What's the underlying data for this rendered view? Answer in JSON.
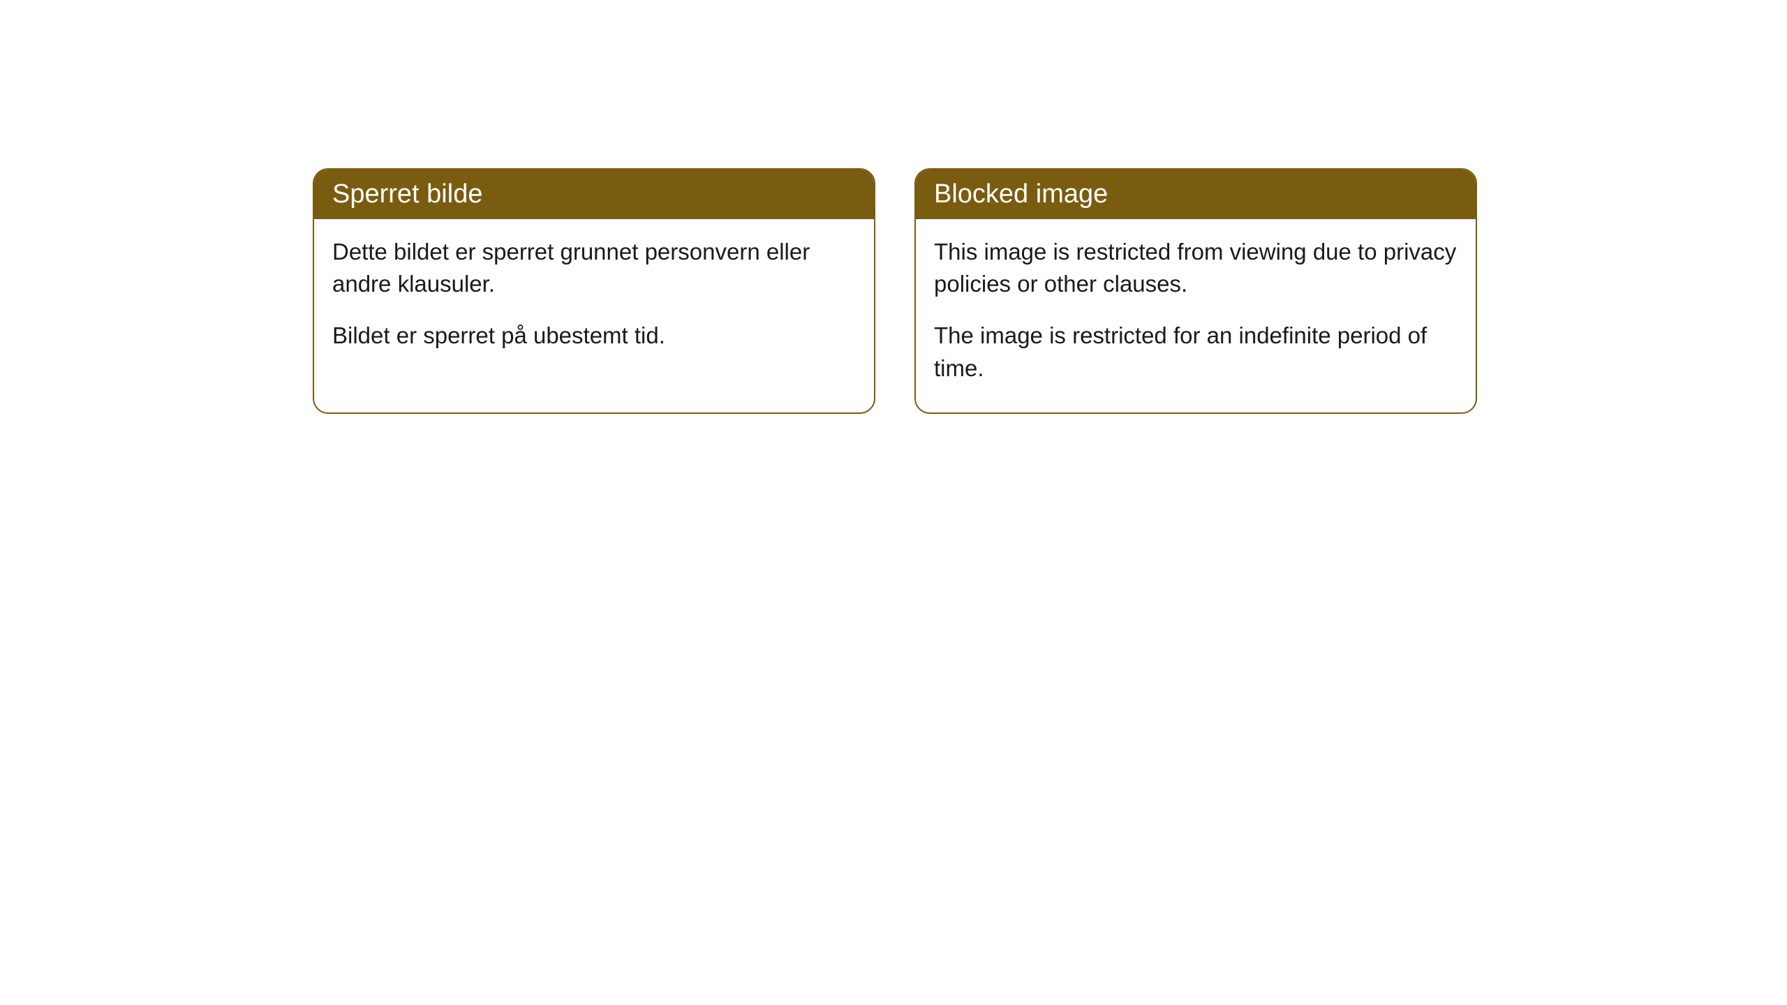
{
  "cards": [
    {
      "title": "Sperret bilde",
      "paragraph1": "Dette bildet er sperret grunnet personvern eller andre klausuler.",
      "paragraph2": "Bildet er sperret på ubestemt tid."
    },
    {
      "title": "Blocked image",
      "paragraph1": "This image is restricted from viewing due to privacy policies or other clauses.",
      "paragraph2": "The image is restricted for an indefinite period of time."
    }
  ],
  "style": {
    "header_bg_color": "#7a5c10",
    "header_text_color": "#ffffff",
    "border_color": "#7a5c10",
    "body_bg_color": "#ffffff",
    "body_text_color": "#1a1a1a",
    "border_radius": 22,
    "title_fontsize": 38,
    "body_fontsize": 33
  }
}
